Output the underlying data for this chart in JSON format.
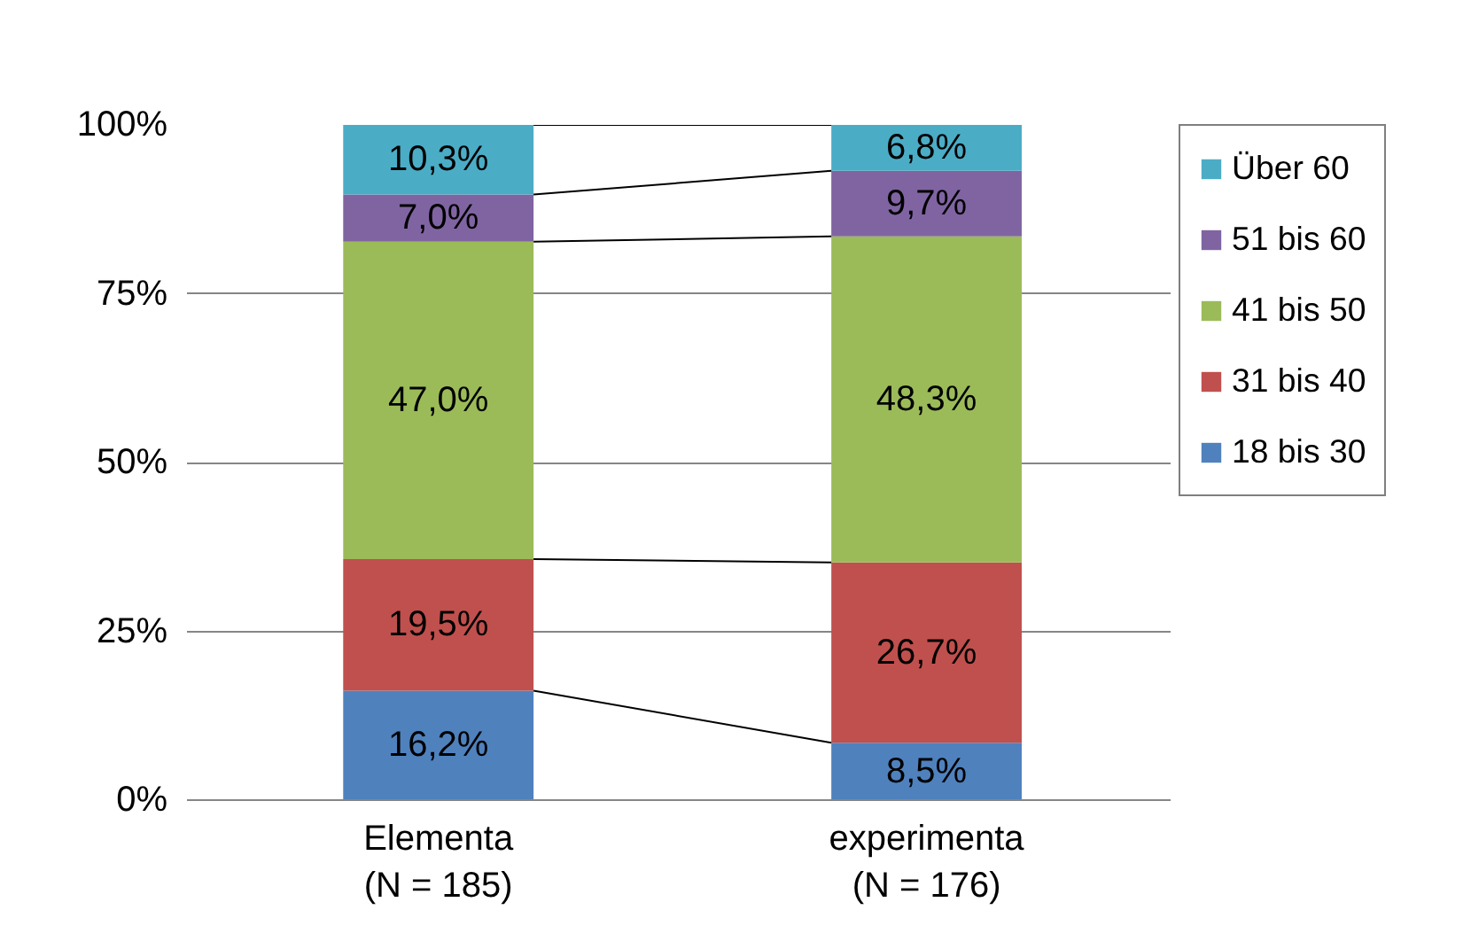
{
  "chart_data": {
    "type": "bar",
    "stacked": true,
    "categories": [
      "Elementa\n(N = 185)",
      "experimenta\n(N = 176)"
    ],
    "series": [
      {
        "name": "18 bis 30",
        "color": "#4f81bd",
        "values": [
          16.2,
          8.5
        ],
        "value_labels": [
          "16,2%",
          "8,5%"
        ]
      },
      {
        "name": "31 bis 40",
        "color": "#c0504d",
        "values": [
          19.5,
          26.7
        ],
        "value_labels": [
          "19,5%",
          "26,7%"
        ]
      },
      {
        "name": "41 bis 50",
        "color": "#9bbb59",
        "values": [
          47.0,
          48.3
        ],
        "value_labels": [
          "47,0%",
          "48,3%"
        ]
      },
      {
        "name": "51 bis 60",
        "color": "#8064a2",
        "values": [
          7.0,
          9.7
        ],
        "value_labels": [
          "7,0%",
          "9,7%"
        ]
      },
      {
        "name": "Über 60",
        "color": "#4bacc6",
        "values": [
          10.3,
          6.8
        ],
        "value_labels": [
          "10,3%",
          "6,8%"
        ]
      }
    ],
    "ylim": [
      0,
      100
    ],
    "yticks": [
      {
        "value": 0,
        "label": "0%"
      },
      {
        "value": 25,
        "label": "25%"
      },
      {
        "value": 50,
        "label": "50%"
      },
      {
        "value": 75,
        "label": "75%"
      },
      {
        "value": 100,
        "label": "100%"
      }
    ],
    "grid": "y",
    "legend": "top right"
  }
}
